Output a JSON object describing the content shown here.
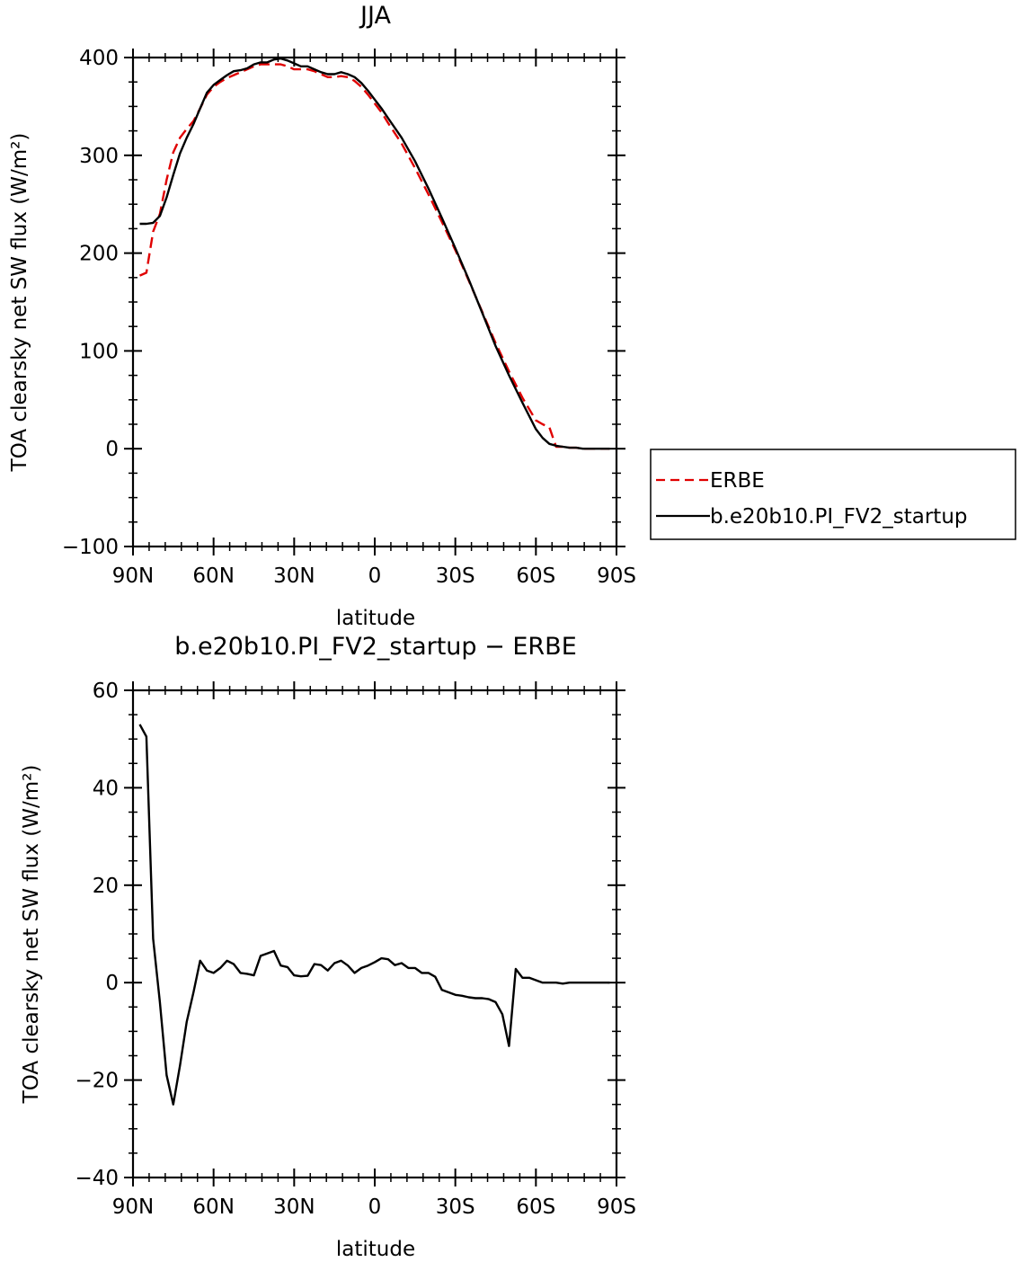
{
  "chart_data": [
    {
      "type": "line",
      "title": "JJA",
      "xlabel": "latitude",
      "ylabel": "TOA clearsky net SW flux (W/m²)",
      "xlim": [
        90,
        -90
      ],
      "ylim": [
        -100,
        400
      ],
      "xticks": [
        90,
        60,
        30,
        0,
        -30,
        -60,
        -90
      ],
      "xticklabels": [
        "90N",
        "60N",
        "30N",
        "0",
        "30S",
        "60S",
        "90S"
      ],
      "yticks": [
        -100,
        0,
        100,
        200,
        300,
        400
      ],
      "yticklabels": [
        "−100",
        "0",
        "100",
        "200",
        "300",
        "400"
      ],
      "legend": {
        "position": "right",
        "entries": [
          "ERBE",
          "b.e20b10.PI_FV2_startup"
        ]
      },
      "series": [
        {
          "name": "ERBE",
          "color": "#e00000",
          "dash": "dashed",
          "x": [
            87.5,
            85,
            82.5,
            80,
            77.5,
            75,
            72.5,
            70,
            67.5,
            65,
            62.5,
            60,
            57.5,
            55,
            52.5,
            50,
            47.5,
            45,
            42.5,
            40,
            37.5,
            35,
            32.5,
            30,
            27.5,
            25,
            22.5,
            20,
            17.5,
            15,
            12.5,
            10,
            7.5,
            5,
            2.5,
            0,
            -2.5,
            -5,
            -10,
            -15,
            -20,
            -25,
            -30,
            -35,
            -40,
            -45,
            -50,
            -55,
            -60,
            -62.5,
            -65,
            -67.5,
            -70,
            -72.5,
            -75,
            -77.5,
            -80,
            -82.5,
            -85,
            -87.5
          ],
          "values": [
            177,
            180,
            222,
            240,
            275,
            303,
            318,
            327,
            335,
            348,
            362,
            370,
            375,
            379,
            382,
            385,
            388,
            391,
            393,
            393,
            393,
            393,
            391,
            388,
            388,
            388,
            386,
            383,
            380,
            380,
            381,
            380,
            376,
            370,
            362,
            353,
            344,
            333,
            312,
            287,
            260,
            232,
            203,
            172,
            140,
            108,
            79,
            52,
            29,
            25,
            22,
            2,
            2,
            1,
            1,
            0,
            0,
            0,
            0,
            0
          ]
        },
        {
          "name": "b.e20b10.PI_FV2_startup",
          "color": "#000000",
          "dash": "solid",
          "x": [
            87.5,
            85,
            82.5,
            80,
            77.5,
            75,
            72.5,
            70,
            67.5,
            65,
            62.5,
            60,
            57.5,
            55,
            52.5,
            50,
            47.5,
            45,
            42.5,
            40,
            37.5,
            35,
            32.5,
            30,
            27.5,
            25,
            22.5,
            20,
            17.5,
            15,
            12.5,
            10,
            7.5,
            5,
            2.5,
            0,
            -2.5,
            -5,
            -10,
            -15,
            -20,
            -25,
            -30,
            -35,
            -40,
            -45,
            -50,
            -55,
            -60,
            -62.5,
            -65,
            -67.5,
            -70,
            -72.5,
            -75,
            -77.5,
            -80,
            -82.5,
            -85,
            -87.5
          ],
          "values": [
            230,
            230,
            231,
            238,
            257,
            280,
            302,
            318,
            332,
            348,
            364,
            372,
            377,
            382,
            386,
            387,
            389,
            393,
            395,
            395,
            398,
            399,
            397,
            394,
            391,
            391,
            388,
            385,
            383,
            383,
            385,
            383,
            380,
            374,
            366,
            357,
            348,
            338,
            318,
            294,
            266,
            236,
            205,
            173,
            139,
            105,
            75,
            47,
            20,
            11,
            5,
            3,
            2,
            1,
            1,
            0,
            0,
            0,
            0,
            0
          ]
        }
      ]
    },
    {
      "type": "line",
      "title": "b.e20b10.PI_FV2_startup − ERBE",
      "xlabel": "latitude",
      "ylabel": "TOA clearsky net SW flux (W/m²)",
      "xlim": [
        90,
        -90
      ],
      "ylim": [
        -40,
        60
      ],
      "xticks": [
        90,
        60,
        30,
        0,
        -30,
        -60,
        -90
      ],
      "xticklabels": [
        "90N",
        "60N",
        "30N",
        "0",
        "30S",
        "60S",
        "90S"
      ],
      "yticks": [
        -40,
        -20,
        0,
        20,
        40,
        60
      ],
      "yticklabels": [
        "−40",
        "−20",
        "0",
        "20",
        "40",
        "60"
      ],
      "series": [
        {
          "color": "#000000",
          "dash": "solid",
          "x": [
            87.5,
            85,
            82.5,
            80,
            77.5,
            75,
            72.5,
            70,
            67.5,
            65,
            62.5,
            60,
            57.5,
            55,
            52.5,
            50,
            47.5,
            45,
            42.5,
            40,
            37.5,
            35,
            32.5,
            30,
            27.5,
            25,
            22.5,
            20,
            17.5,
            15,
            12.5,
            10,
            7.5,
            5,
            2.5,
            0,
            -2.5,
            -5,
            -7.5,
            -10,
            -12.5,
            -15,
            -17.5,
            -20,
            -22.5,
            -25,
            -27.5,
            -30,
            -32.5,
            -35,
            -37.5,
            -40,
            -42.5,
            -45,
            -47.5,
            -50,
            -52.5,
            -55,
            -57.5,
            -60,
            -62.5,
            -65,
            -67.5,
            -70,
            -72.5,
            -75,
            -77.5,
            -80,
            -82.5,
            -85,
            -87.5
          ],
          "values": [
            53,
            50.5,
            9,
            -4,
            -19,
            -25,
            -17,
            -8,
            -2,
            4.5,
            2.5,
            2,
            3,
            4.5,
            3.8,
            2,
            1.8,
            1.5,
            5.5,
            6,
            6.5,
            3.5,
            3.2,
            1.5,
            1.3,
            1.4,
            3.8,
            3.6,
            2.5,
            4,
            4.5,
            3.5,
            2,
            3,
            3.5,
            4.2,
            5,
            4.8,
            3.6,
            4,
            3,
            3,
            2,
            2,
            1.2,
            -1.5,
            -2,
            -2.5,
            -2.7,
            -3,
            -3.2,
            -3.2,
            -3.4,
            -4,
            -6.5,
            -13,
            2.8,
            1,
            1,
            0.5,
            0,
            0,
            0,
            -0.2,
            0,
            0,
            0,
            0,
            0,
            0,
            0
          ]
        }
      ]
    }
  ]
}
